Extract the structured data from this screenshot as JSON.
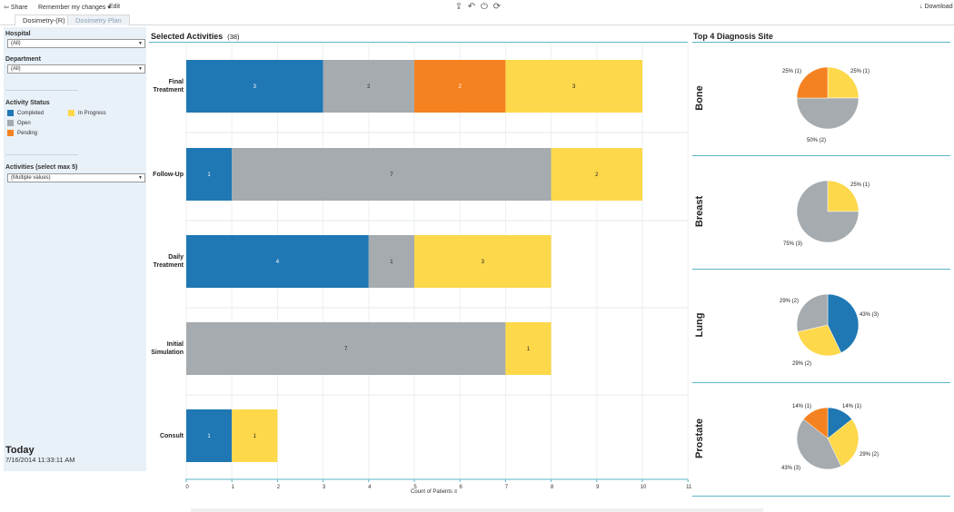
{
  "toolbar": {
    "share": "Share",
    "remember": "Remember my changes",
    "edit": "Edit",
    "download": "Download"
  },
  "tabs": [
    {
      "label": "Dosimetry-(R)",
      "active": true
    },
    {
      "label": "Dosimetry Plan",
      "active": false
    }
  ],
  "filters": {
    "hospital_label": "Hospital",
    "hospital_value": "(All)",
    "department_label": "Department",
    "department_value": "(All)",
    "status_label": "Activity Status",
    "status_items": [
      {
        "label": "Completed",
        "color": "#1f77b4"
      },
      {
        "label": "In Progress",
        "color": "#fdd84a"
      },
      {
        "label": "Open",
        "color": "#a5abaf"
      },
      {
        "label": "Pending",
        "color": "#f58220"
      }
    ],
    "activities_label": "Activities  (select max 5)",
    "activities_value": "(Multiple values)"
  },
  "footer": {
    "today": "Today",
    "timestamp": "7/16/2014 11:33:11 AM"
  },
  "bar_chart": {
    "title": "Selected Activities",
    "count": "(38)",
    "xlabel": "Count of Patients"
  },
  "pie_section": {
    "title": "Top 4 Diagnosis Site"
  },
  "colors": {
    "completed": "#1f77b4",
    "open": "#a5abaf",
    "pending": "#f58220",
    "in_progress": "#fdd84a"
  },
  "chart_data": [
    {
      "type": "bar",
      "orientation": "horizontal",
      "stacked": true,
      "title": "Selected Activities",
      "xlabel": "Count of Patients",
      "xlim": [
        0,
        11
      ],
      "xticks": [
        0,
        1,
        2,
        3,
        4,
        5,
        6,
        7,
        8,
        9,
        10,
        11
      ],
      "categories": [
        "Final Treatment",
        "Follow-Up",
        "Daily Treatment",
        "Initial Simulation",
        "Consult"
      ],
      "series": [
        {
          "name": "Completed",
          "color": "#1f77b4",
          "values": [
            3,
            1,
            4,
            0,
            1
          ]
        },
        {
          "name": "Open",
          "color": "#a5abaf",
          "values": [
            2,
            7,
            1,
            7,
            0
          ]
        },
        {
          "name": "Pending",
          "color": "#f58220",
          "values": [
            2,
            0,
            0,
            0,
            0
          ]
        },
        {
          "name": "In Progress",
          "color": "#fdd84a",
          "values": [
            3,
            2,
            3,
            1,
            1
          ]
        }
      ]
    },
    {
      "type": "pie",
      "title": "Top 4 Diagnosis Site",
      "panels": [
        {
          "name": "Bone",
          "slices": [
            {
              "name": "In Progress",
              "value": 1,
              "label": "25%  (1)"
            },
            {
              "name": "Open",
              "value": 2,
              "label": "50%  (2)"
            },
            {
              "name": "Pending",
              "value": 1,
              "label": "25%  (1)"
            }
          ]
        },
        {
          "name": "Breast",
          "slices": [
            {
              "name": "In Progress",
              "value": 1,
              "label": "25%  (1)"
            },
            {
              "name": "Open",
              "value": 3,
              "label": "75%  (3)"
            }
          ]
        },
        {
          "name": "Lung",
          "slices": [
            {
              "name": "Completed",
              "value": 3,
              "label": "43%  (3)"
            },
            {
              "name": "In Progress",
              "value": 2,
              "label": "29%  (2)"
            },
            {
              "name": "Open",
              "value": 2,
              "label": "29%  (2)"
            }
          ]
        },
        {
          "name": "Prostate",
          "slices": [
            {
              "name": "Completed",
              "value": 1,
              "label": "14%  (1)"
            },
            {
              "name": "In Progress",
              "value": 2,
              "label": "29%  (2)"
            },
            {
              "name": "Open",
              "value": 3,
              "label": "43%  (3)"
            },
            {
              "name": "Pending",
              "value": 1,
              "label": "14%  (1)"
            }
          ]
        }
      ]
    }
  ]
}
